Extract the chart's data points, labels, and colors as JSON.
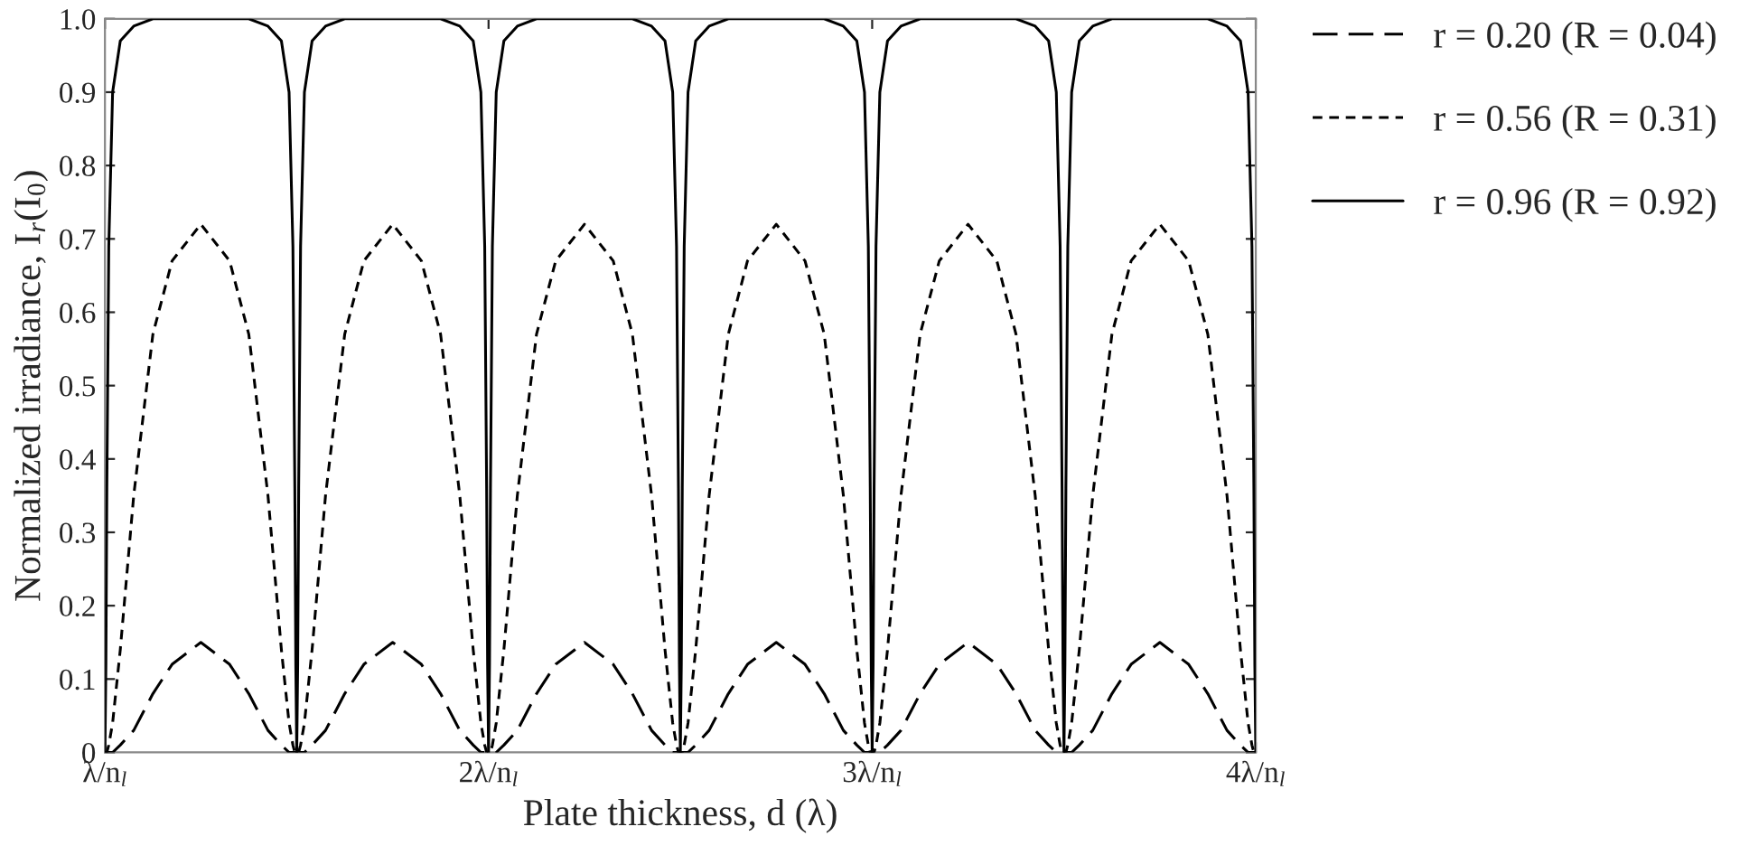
{
  "chart_data": {
    "type": "line",
    "xlabel": "Plate thickness, d (λ)",
    "ylabel": "Normalized irradiance, I$_{r}$(I$_{0}$)",
    "x": [
      1,
      1.0025,
      1.005,
      1.01,
      1.02,
      1.04,
      1.075,
      1.125,
      1.175,
      1.25,
      1.325,
      1.375,
      1.425,
      1.46,
      1.48,
      1.49,
      1.495,
      1.4975,
      1.5,
      1.5025,
      1.505,
      1.51,
      1.52,
      1.54,
      1.575,
      1.625,
      1.675,
      1.75,
      1.825,
      1.875,
      1.925,
      1.96,
      1.98,
      1.99,
      1.995,
      1.9975,
      2,
      2.0025,
      2.005,
      2.01,
      2.02,
      2.04,
      2.075,
      2.125,
      2.175,
      2.25,
      2.325,
      2.375,
      2.425,
      2.46,
      2.48,
      2.49,
      2.495,
      2.4975,
      2.5,
      2.5025,
      2.505,
      2.51,
      2.52,
      2.54,
      2.575,
      2.625,
      2.675,
      2.75,
      2.825,
      2.875,
      2.925,
      2.96,
      2.98,
      2.99,
      2.995,
      2.9975,
      3,
      3.0025,
      3.005,
      3.01,
      3.02,
      3.04,
      3.075,
      3.125,
      3.175,
      3.25,
      3.325,
      3.375,
      3.425,
      3.46,
      3.48,
      3.49,
      3.495,
      3.4975,
      3.5,
      3.5025,
      3.505,
      3.51,
      3.52,
      3.54,
      3.575,
      3.625,
      3.675,
      3.75,
      3.825,
      3.875,
      3.925,
      3.96,
      3.98,
      3.99,
      3.995,
      3.9975,
      4
    ],
    "series": [
      {
        "name": "r = 0.20 (R = 0.04)",
        "color": "#000000",
        "line_style": "dashed",
        "values": [
          0,
          0,
          0,
          0,
          0,
          0.01,
          0.03,
          0.08,
          0.12,
          0.15,
          0.12,
          0.08,
          0.03,
          0.01,
          0,
          0,
          0,
          0,
          0,
          0,
          0,
          0,
          0,
          0.01,
          0.03,
          0.08,
          0.12,
          0.15,
          0.12,
          0.08,
          0.03,
          0.01,
          0,
          0,
          0,
          0,
          0,
          0,
          0,
          0,
          0,
          0.01,
          0.03,
          0.08,
          0.12,
          0.15,
          0.12,
          0.08,
          0.03,
          0.01,
          0,
          0,
          0,
          0,
          0,
          0,
          0,
          0,
          0,
          0.01,
          0.03,
          0.08,
          0.12,
          0.15,
          0.12,
          0.08,
          0.03,
          0.01,
          0,
          0,
          0,
          0,
          0,
          0,
          0,
          0,
          0,
          0.01,
          0.03,
          0.08,
          0.12,
          0.15,
          0.12,
          0.08,
          0.03,
          0.01,
          0,
          0,
          0,
          0,
          0,
          0,
          0,
          0,
          0,
          0.01,
          0.03,
          0.08,
          0.12,
          0.15,
          0.12,
          0.08,
          0.03,
          0.01,
          0,
          0,
          0,
          0,
          0
        ]
      },
      {
        "name": "r = 0.56 (R = 0.31)",
        "color": "#000000",
        "line_style": "dotted",
        "values": [
          0,
          0,
          0,
          0.01,
          0.04,
          0.14,
          0.35,
          0.57,
          0.67,
          0.72,
          0.67,
          0.57,
          0.35,
          0.14,
          0.04,
          0.01,
          0,
          0,
          0,
          0,
          0,
          0.01,
          0.04,
          0.14,
          0.35,
          0.57,
          0.67,
          0.72,
          0.67,
          0.57,
          0.35,
          0.14,
          0.04,
          0.01,
          0,
          0,
          0,
          0,
          0,
          0.01,
          0.04,
          0.14,
          0.35,
          0.57,
          0.67,
          0.72,
          0.67,
          0.57,
          0.35,
          0.14,
          0.04,
          0.01,
          0,
          0,
          0,
          0,
          0,
          0.01,
          0.04,
          0.14,
          0.35,
          0.57,
          0.67,
          0.72,
          0.67,
          0.57,
          0.35,
          0.14,
          0.04,
          0.01,
          0,
          0,
          0,
          0,
          0,
          0.01,
          0.04,
          0.14,
          0.35,
          0.57,
          0.67,
          0.72,
          0.67,
          0.57,
          0.35,
          0.14,
          0.04,
          0.01,
          0,
          0,
          0,
          0,
          0,
          0.01,
          0.04,
          0.14,
          0.35,
          0.57,
          0.67,
          0.72,
          0.67,
          0.57,
          0.35,
          0.14,
          0.04,
          0.01,
          0,
          0,
          0
        ]
      },
      {
        "name": "r = 0.96 (R = 0.92)",
        "color": "#000000",
        "line_style": "solid",
        "values": [
          0,
          0.12,
          0.36,
          0.69,
          0.9,
          0.97,
          0.99,
          1.0,
          1.0,
          1.0,
          1.0,
          1.0,
          0.99,
          0.97,
          0.9,
          0.69,
          0.36,
          0.12,
          0,
          0.12,
          0.36,
          0.69,
          0.9,
          0.97,
          0.99,
          1.0,
          1.0,
          1.0,
          1.0,
          1.0,
          0.99,
          0.97,
          0.9,
          0.69,
          0.36,
          0.12,
          0,
          0.12,
          0.36,
          0.69,
          0.9,
          0.97,
          0.99,
          1.0,
          1.0,
          1.0,
          1.0,
          1.0,
          0.99,
          0.97,
          0.9,
          0.69,
          0.36,
          0.12,
          0,
          0.12,
          0.36,
          0.69,
          0.9,
          0.97,
          0.99,
          1.0,
          1.0,
          1.0,
          1.0,
          1.0,
          0.99,
          0.97,
          0.9,
          0.69,
          0.36,
          0.12,
          0,
          0.12,
          0.36,
          0.69,
          0.9,
          0.97,
          0.99,
          1.0,
          1.0,
          1.0,
          1.0,
          1.0,
          0.99,
          0.97,
          0.9,
          0.69,
          0.36,
          0.12,
          0,
          0.12,
          0.36,
          0.69,
          0.9,
          0.97,
          0.99,
          1.0,
          1.0,
          1.0,
          1.0,
          1.0,
          0.99,
          0.97,
          0.9,
          0.69,
          0.36,
          0.12,
          0
        ]
      }
    ],
    "xlim": [
      1,
      4
    ],
    "xticks": [
      {
        "value": 1,
        "label": "λ/n$_{l}$"
      },
      {
        "value": 2,
        "label": "2λ/n$_{l}$"
      },
      {
        "value": 3,
        "label": "3λ/n$_{l}$"
      },
      {
        "value": 4,
        "label": "4λ/n$_{l}$"
      }
    ],
    "ylim": [
      0,
      1
    ],
    "yticks": [
      0,
      0.1,
      0.2,
      0.3,
      0.4,
      0.5,
      0.6,
      0.7,
      0.8,
      0.9,
      {
        "value": 1,
        "label": "1.0"
      }
    ],
    "grid": false,
    "legend": "right"
  }
}
